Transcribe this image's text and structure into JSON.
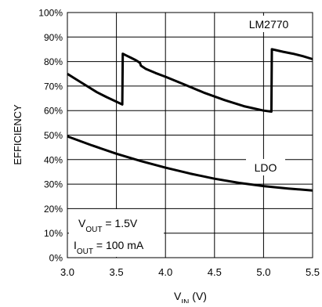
{
  "chart_data": {
    "type": "line",
    "title": "",
    "xlabel": {
      "main": "V",
      "sub": "IN",
      "unit": " (V)"
    },
    "ylabel": "EFFICIENCY",
    "xlim": [
      3.0,
      5.5
    ],
    "ylim": [
      0,
      100
    ],
    "xticks": [
      3.0,
      3.5,
      4.0,
      4.5,
      5.0,
      5.5
    ],
    "xtick_labels": [
      "3.0",
      "3.5",
      "4.0",
      "4.5",
      "5.0",
      "5.5"
    ],
    "yticks": [
      0,
      10,
      20,
      30,
      40,
      50,
      60,
      70,
      80,
      90,
      100
    ],
    "ytick_labels": [
      "0%",
      "10%",
      "20%",
      "30%",
      "40%",
      "50%",
      "60%",
      "70%",
      "80%",
      "90%",
      "100%"
    ],
    "grid": true,
    "series": [
      {
        "name": "LM2770",
        "x": [
          3.0,
          3.1,
          3.2,
          3.3,
          3.4,
          3.56,
          3.565,
          3.6,
          3.65,
          3.7,
          3.74,
          3.75,
          3.8,
          3.9,
          4.0,
          4.2,
          4.4,
          4.6,
          4.8,
          5.0,
          5.08,
          5.085,
          5.2,
          5.3,
          5.4,
          5.5
        ],
        "y": [
          75,
          72.5,
          70,
          67.5,
          65.5,
          62.5,
          83.2,
          82.5,
          81.5,
          80.5,
          79.5,
          78.3,
          77,
          75.3,
          73.8,
          70.5,
          67.2,
          64.3,
          61.8,
          60,
          59.6,
          85,
          84,
          83.2,
          82.2,
          81
        ]
      },
      {
        "name": "LDO",
        "x": [
          3.0,
          3.25,
          3.5,
          3.75,
          4.0,
          4.25,
          4.5,
          4.75,
          5.0,
          5.25,
          5.5
        ],
        "y": [
          49.5,
          45.8,
          42.4,
          39.4,
          36.7,
          34.3,
          32.2,
          30.5,
          29.2,
          28.2,
          27.4
        ]
      }
    ],
    "annotations": {
      "lm2770": "LM2770",
      "ldo": "LDO",
      "vout": {
        "main": "V",
        "sub": "OUT",
        "rest": " = 1.5V"
      },
      "iout": {
        "main": "I",
        "sub": "OUT",
        "rest": " = 100 mA"
      }
    },
    "colors": {
      "line": "#000000",
      "grid": "#000000",
      "background": "#ffffff"
    }
  }
}
